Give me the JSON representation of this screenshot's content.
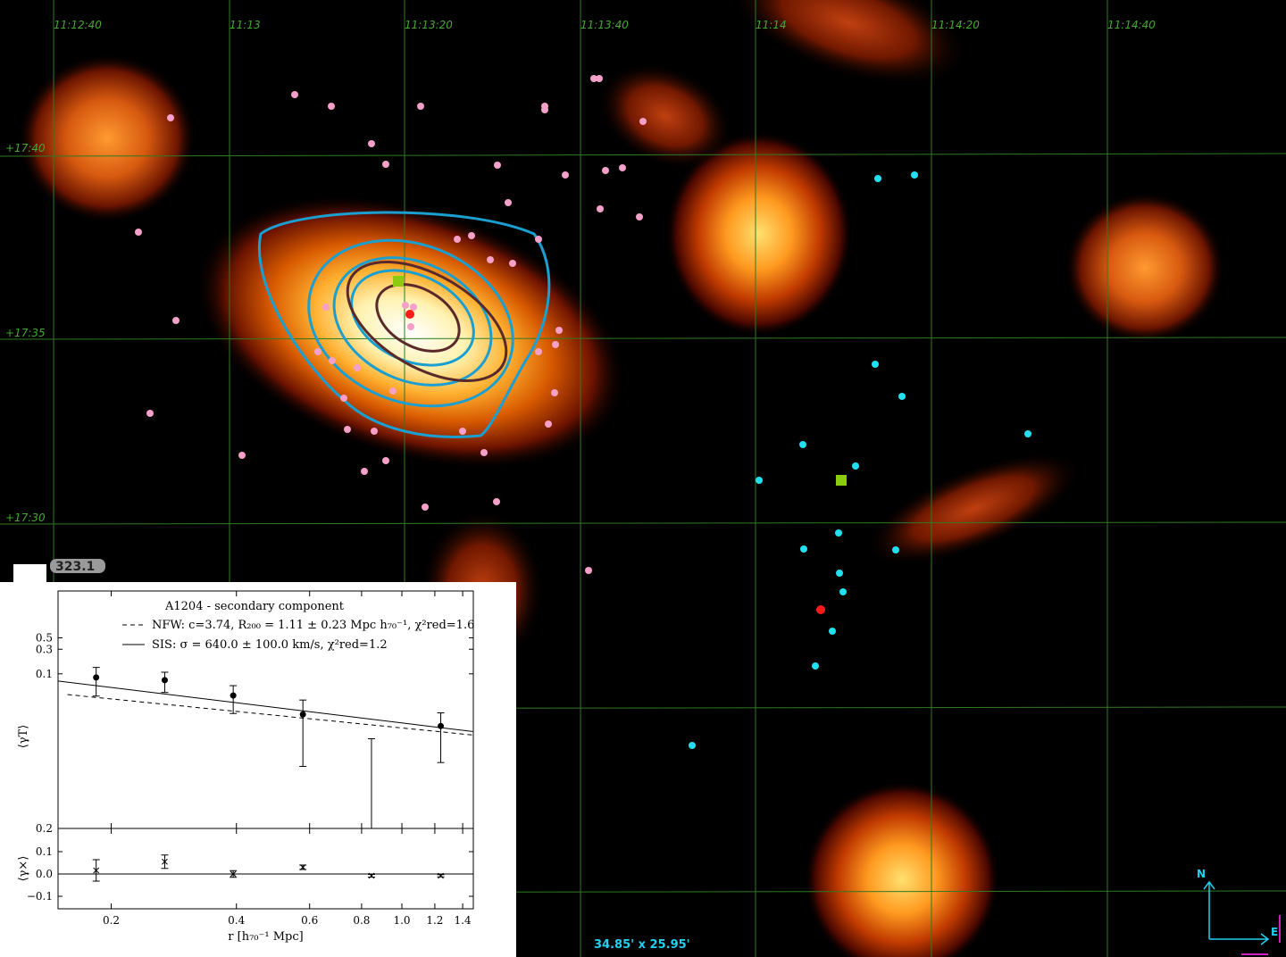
{
  "viewer": {
    "ra_labels": [
      "11:12:40",
      "11:13",
      "11:13:20",
      "11:13:40",
      "11:14",
      "11:14:20",
      "11:14:40"
    ],
    "dec_labels": [
      "+17:40",
      "+17:35",
      "+17:30"
    ],
    "scale_value": "323.1",
    "field_size": "34.85' x 25.95'",
    "compass": {
      "north": "N",
      "east": "E"
    }
  },
  "chart_data": [
    {
      "type": "scatter",
      "title": "A1204 - secondary component",
      "log_x": true,
      "log_y": true,
      "xlim": [
        0.149,
        1.485
      ],
      "ylim": [
        0.0001,
        4.05
      ],
      "yticks": [
        0.5,
        0.3,
        0.1
      ],
      "y_bottom_label": "0.2",
      "ylabel": "⟨γT⟩",
      "x": [
        0.184,
        0.269,
        0.393,
        0.578,
        0.845,
        1.24
      ],
      "values": [
        0.085,
        0.0755,
        0.038,
        0.0163,
        -0.002,
        0.0097
      ],
      "errors": [
        0.048,
        0.032,
        0.021,
        0.0147,
        0.0075,
        0.0078
      ],
      "color": "#000000",
      "series": [
        {
          "name": "NFW: c=3.74, R₂₀₀ = 1.11 ± 0.23 Mpc h₇₀⁻¹, χ²red=1.6",
          "style": "dashed",
          "color": "#000000",
          "x": [
            0.157,
            1.48
          ],
          "values": [
            0.0396,
            0.0065
          ]
        },
        {
          "name": "SIS: σ = 640.0 ± 100.0 km/s, χ²red=1.2",
          "style": "solid",
          "color": "#000000",
          "x": [
            0.149,
            1.48
          ],
          "values": [
            0.0725,
            0.0076
          ]
        }
      ]
    },
    {
      "type": "scatter",
      "log_x": true,
      "xlim": [
        0.149,
        1.485
      ],
      "ylim": [
        -0.156,
        0.204
      ],
      "xticks": [
        0.2,
        0.4,
        0.6,
        0.8,
        {
          "value": 1,
          "label": "1.0"
        },
        1.2,
        1.4
      ],
      "yticks": [
        0.1,
        {
          "value": 0,
          "label": "0.0"
        },
        {
          "value": -0.1,
          "label": "−0.1"
        }
      ],
      "ylabel": "⟨γ×⟩",
      "xlabel": "r [h₇₀⁻¹  Mpc]",
      "x": [
        0.184,
        0.269,
        0.393,
        0.578,
        0.845,
        1.24
      ],
      "values": [
        0.016,
        0.055,
        0.0,
        0.03,
        -0.008,
        -0.008
      ],
      "errors": [
        0.048,
        0.03,
        0.015,
        0.01,
        0.006,
        0.005
      ],
      "color": "#000000"
    }
  ]
}
